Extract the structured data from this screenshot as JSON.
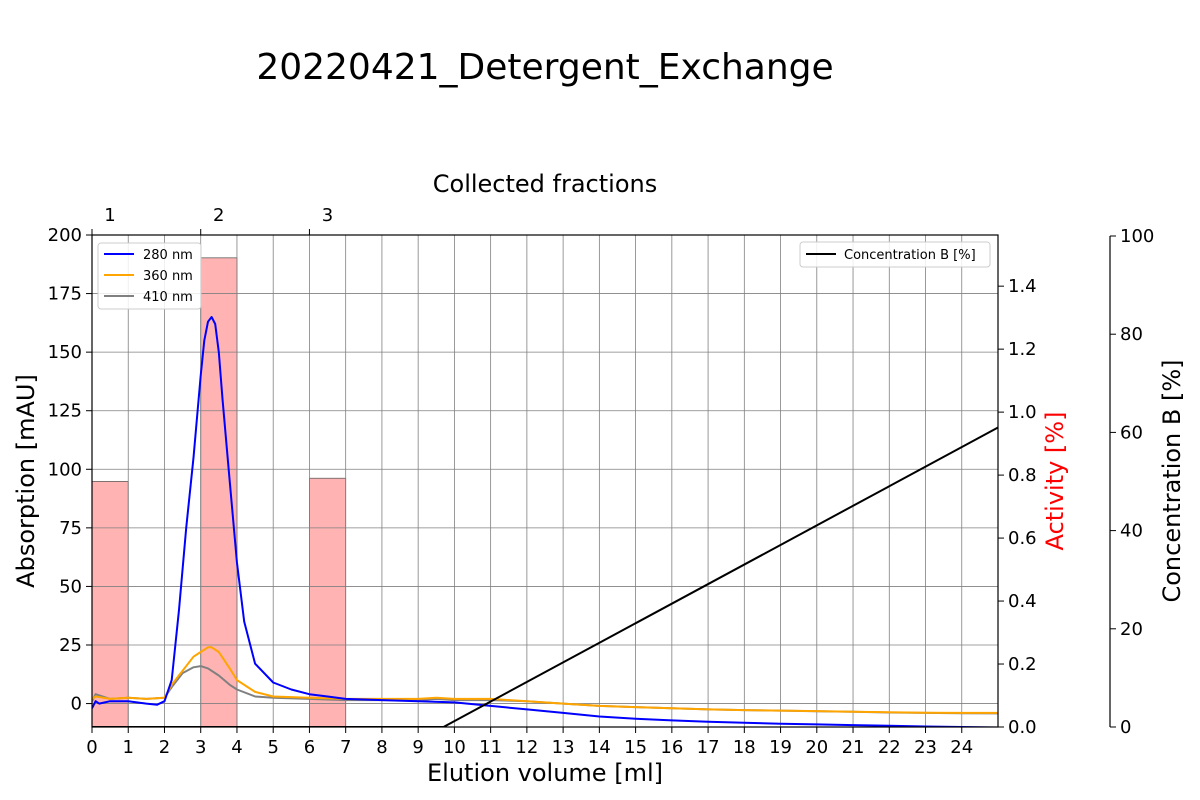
{
  "title": "20220421_Detergent_Exchange",
  "colors": {
    "uv280": "#0000ff",
    "uv360": "#ffa500",
    "uv410": "#808080",
    "concentration": "#000000",
    "activity_axis": "#ff0000",
    "fraction_bar": "#ff9999",
    "grid": "#808080"
  },
  "chart_data": {
    "type": "line",
    "title": "20220421_Detergent_Exchange",
    "xlabel": "Elution volume [ml]",
    "xlim": [
      0,
      25
    ],
    "x_ticks": [
      "0",
      "1",
      "2",
      "3",
      "4",
      "5",
      "6",
      "7",
      "8",
      "9",
      "10",
      "11",
      "12",
      "13",
      "14",
      "15",
      "16",
      "17",
      "18",
      "19",
      "20",
      "21",
      "22",
      "23",
      "24"
    ],
    "top_axis": {
      "label": "Collected fractions",
      "ticks": [
        {
          "x": 0,
          "label": "1"
        },
        {
          "x": 3,
          "label": "2"
        },
        {
          "x": 6,
          "label": "3"
        }
      ]
    },
    "left_axis": {
      "label": "Absorption [mAU]",
      "ylim": [
        -10,
        200
      ],
      "ticks": [
        "0",
        "25",
        "50",
        "75",
        "100",
        "125",
        "150",
        "175",
        "200"
      ]
    },
    "activity_axis": {
      "label": "Activity [%]",
      "ylim": [
        0,
        1.5625
      ],
      "ticks": [
        "0.0",
        "0.2",
        "0.4",
        "0.6",
        "0.8",
        "1.0",
        "1.2",
        "1.4"
      ]
    },
    "concentration_axis": {
      "label": "Concentration B [%]",
      "ylim": [
        0,
        100
      ],
      "ticks": [
        "0",
        "20",
        "40",
        "60",
        "80",
        "100"
      ]
    },
    "grid": true,
    "legend_uv": {
      "placement": "upper-left",
      "entries": [
        "280 nm",
        "360 nm",
        "410 nm"
      ]
    },
    "legend_conc": {
      "placement": "upper-right",
      "entries": [
        "Concentration B [%]"
      ]
    },
    "activity_bars": [
      {
        "x_start": 0,
        "x_end": 1,
        "value": 0.78
      },
      {
        "x_start": 3,
        "x_end": 4,
        "value": 1.49
      },
      {
        "x_start": 6,
        "x_end": 7,
        "value": 0.79
      }
    ],
    "series": [
      {
        "name": "280 nm",
        "axis": "absorption",
        "x": [
          0,
          0.1,
          0.2,
          0.5,
          1.0,
          1.5,
          1.8,
          2.0,
          2.2,
          2.4,
          2.6,
          2.8,
          3.0,
          3.1,
          3.2,
          3.3,
          3.4,
          3.5,
          3.6,
          3.8,
          4.0,
          4.2,
          4.5,
          5.0,
          5.5,
          6.0,
          6.5,
          7.0,
          8.0,
          9.0,
          10.0,
          11.0,
          12.0,
          13.0,
          14.0,
          15.0,
          16.0,
          17.0,
          18.0,
          19.0,
          20.0,
          21.0,
          22.0,
          23.0,
          24.0,
          25.0
        ],
        "y": [
          -2,
          1,
          0,
          1,
          1,
          0,
          -0.5,
          1,
          10,
          40,
          75,
          105,
          140,
          155,
          163,
          165,
          162,
          150,
          130,
          95,
          60,
          35,
          17,
          9,
          6,
          4,
          3,
          2,
          1.5,
          1,
          0.5,
          -1,
          -2.5,
          -4,
          -5.5,
          -6.5,
          -7.2,
          -7.8,
          -8.2,
          -8.6,
          -8.9,
          -9.2,
          -9.5,
          -9.8,
          -10,
          -10.2
        ]
      },
      {
        "name": "360 nm",
        "axis": "absorption",
        "x": [
          0,
          0.1,
          0.5,
          1.0,
          1.5,
          2.0,
          2.2,
          2.5,
          2.8,
          3.0,
          3.2,
          3.3,
          3.5,
          3.8,
          4.0,
          4.5,
          5.0,
          6.0,
          7.0,
          8.0,
          9.0,
          9.5,
          10.0,
          11.0,
          12.0,
          13.0,
          14.0,
          15.0,
          16.0,
          17.0,
          18.0,
          19.0,
          20.0,
          21.0,
          22.0,
          23.0,
          24.0,
          25.0
        ],
        "y": [
          2,
          3,
          2,
          2.5,
          2,
          2.5,
          8,
          14,
          20,
          22,
          24,
          24,
          22,
          15,
          10,
          5,
          3,
          2.5,
          2,
          2,
          2,
          2.5,
          2,
          2,
          1,
          0,
          -1,
          -1.5,
          -2,
          -2.5,
          -2.8,
          -3,
          -3.2,
          -3.5,
          -3.7,
          -3.9,
          -4,
          -4
        ]
      },
      {
        "name": "410 nm",
        "axis": "absorption",
        "x": [
          0,
          0.1,
          0.5,
          1.0,
          1.5,
          2.0,
          2.2,
          2.5,
          2.8,
          3.0,
          3.2,
          3.5,
          3.8,
          4.0,
          4.5,
          5.0,
          6.0,
          7.0,
          8.0,
          9.0,
          9.5,
          10.0,
          11.0,
          12.0,
          13.0,
          14.0,
          15.0,
          16.0,
          17.0,
          18.0,
          19.0,
          20.0,
          21.0,
          22.0,
          23.0,
          24.0,
          25.0
        ],
        "y": [
          1,
          4,
          2,
          2.5,
          2,
          2.5,
          7,
          13,
          15.5,
          16,
          15,
          12,
          8,
          6,
          3,
          2.5,
          2,
          1.5,
          1.5,
          1.5,
          2,
          1.5,
          1.5,
          1,
          0,
          -1,
          -1.5,
          -2,
          -2.5,
          -2.8,
          -3,
          -3.3,
          -3.5,
          -3.8,
          -4,
          -4.1,
          -4.2
        ]
      },
      {
        "name": "Concentration B [%]",
        "axis": "concentration",
        "x": [
          0,
          9.7,
          25
        ],
        "y": [
          0,
          0,
          61
        ]
      }
    ]
  }
}
